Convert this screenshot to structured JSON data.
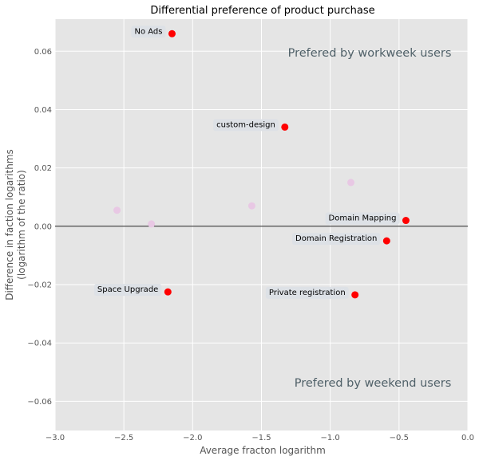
{
  "chart_data": {
    "type": "scatter",
    "title": "Differential preference of product purchase",
    "xlabel": "Average fracton logarithm",
    "ylabel_lines": [
      "Difference in faction logarithms",
      "(logarithm of the ratio)"
    ],
    "xlim": [
      -3.0,
      0.0
    ],
    "ylim": [
      -0.07,
      0.071
    ],
    "xticks": [
      -3.0,
      -2.5,
      -2.0,
      -1.5,
      -1.0,
      -0.5,
      0.0
    ],
    "xtick_labels": [
      "−3.0",
      "−2.5",
      "−2.0",
      "−1.5",
      "−1.0",
      "−0.5",
      "0.0"
    ],
    "yticks": [
      -0.06,
      -0.04,
      -0.02,
      0.0,
      0.02,
      0.04,
      0.06
    ],
    "ytick_labels": [
      "−0.06",
      "−0.04",
      "−0.02",
      "0.00",
      "0.02",
      "0.04",
      "0.06"
    ],
    "grid": true,
    "reference_line_y": 0.0,
    "region_labels": {
      "top": "Prefered by workweek users",
      "bottom": "Prefered by weekend users"
    },
    "highlighted_points": [
      {
        "label": "No Ads",
        "x": -2.15,
        "y": 0.066
      },
      {
        "label": "custom-design",
        "x": -1.33,
        "y": 0.034
      },
      {
        "label": "Domain Mapping",
        "x": -0.45,
        "y": 0.002
      },
      {
        "label": "Domain Registration",
        "x": -0.59,
        "y": -0.005
      },
      {
        "label": "Private registration",
        "x": -0.82,
        "y": -0.0235
      },
      {
        "label": "Space Upgrade",
        "x": -2.18,
        "y": -0.0225
      }
    ],
    "background_points": [
      {
        "x": -2.55,
        "y": 0.0055
      },
      {
        "x": -2.3,
        "y": 0.0008
      },
      {
        "x": -1.57,
        "y": 0.007
      },
      {
        "x": -0.85,
        "y": 0.015
      }
    ],
    "colors": {
      "highlight": "#ff0000",
      "background_point": "#e8c8e4",
      "plot_bg": "#e5e5e5",
      "grid": "#ffffff",
      "annotation_box": "#dde1e6"
    }
  }
}
